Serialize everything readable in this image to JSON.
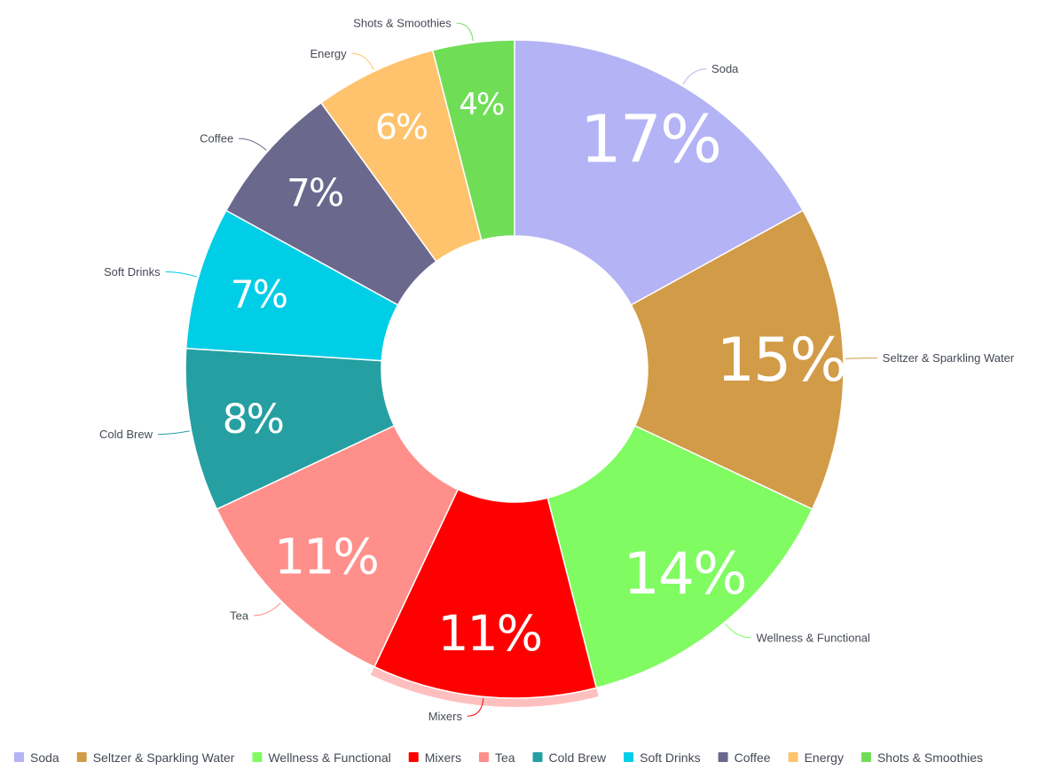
{
  "chart_data": {
    "type": "pie",
    "donut": true,
    "legend_position": "bottom",
    "slices": [
      {
        "name": "Soda",
        "value": 17,
        "label": "17%",
        "color": "#b3b3f5"
      },
      {
        "name": "Seltzer & Sparkling Water",
        "value": 15,
        "label": "15%",
        "color": "#d29b47"
      },
      {
        "name": "Wellness & Functional",
        "value": 14,
        "label": "14%",
        "color": "#80fb62"
      },
      {
        "name": "Mixers",
        "value": 11,
        "label": "11%",
        "color": "#ff0000"
      },
      {
        "name": "Tea",
        "value": 11,
        "label": "11%",
        "color": "#ff8f8b"
      },
      {
        "name": "Cold Brew",
        "value": 8,
        "label": "8%",
        "color": "#269fa2"
      },
      {
        "name": "Soft Drinks",
        "value": 7,
        "label": "7%",
        "color": "#00cde6"
      },
      {
        "name": "Coffee",
        "value": 7,
        "label": "7%",
        "color": "#6b688e"
      },
      {
        "name": "Energy",
        "value": 6,
        "label": "6%",
        "color": "#ffc36d"
      },
      {
        "name": "Shots & Smoothies",
        "value": 4,
        "label": "4%",
        "color": "#70dd57"
      }
    ],
    "highlighted": "Mixers"
  }
}
